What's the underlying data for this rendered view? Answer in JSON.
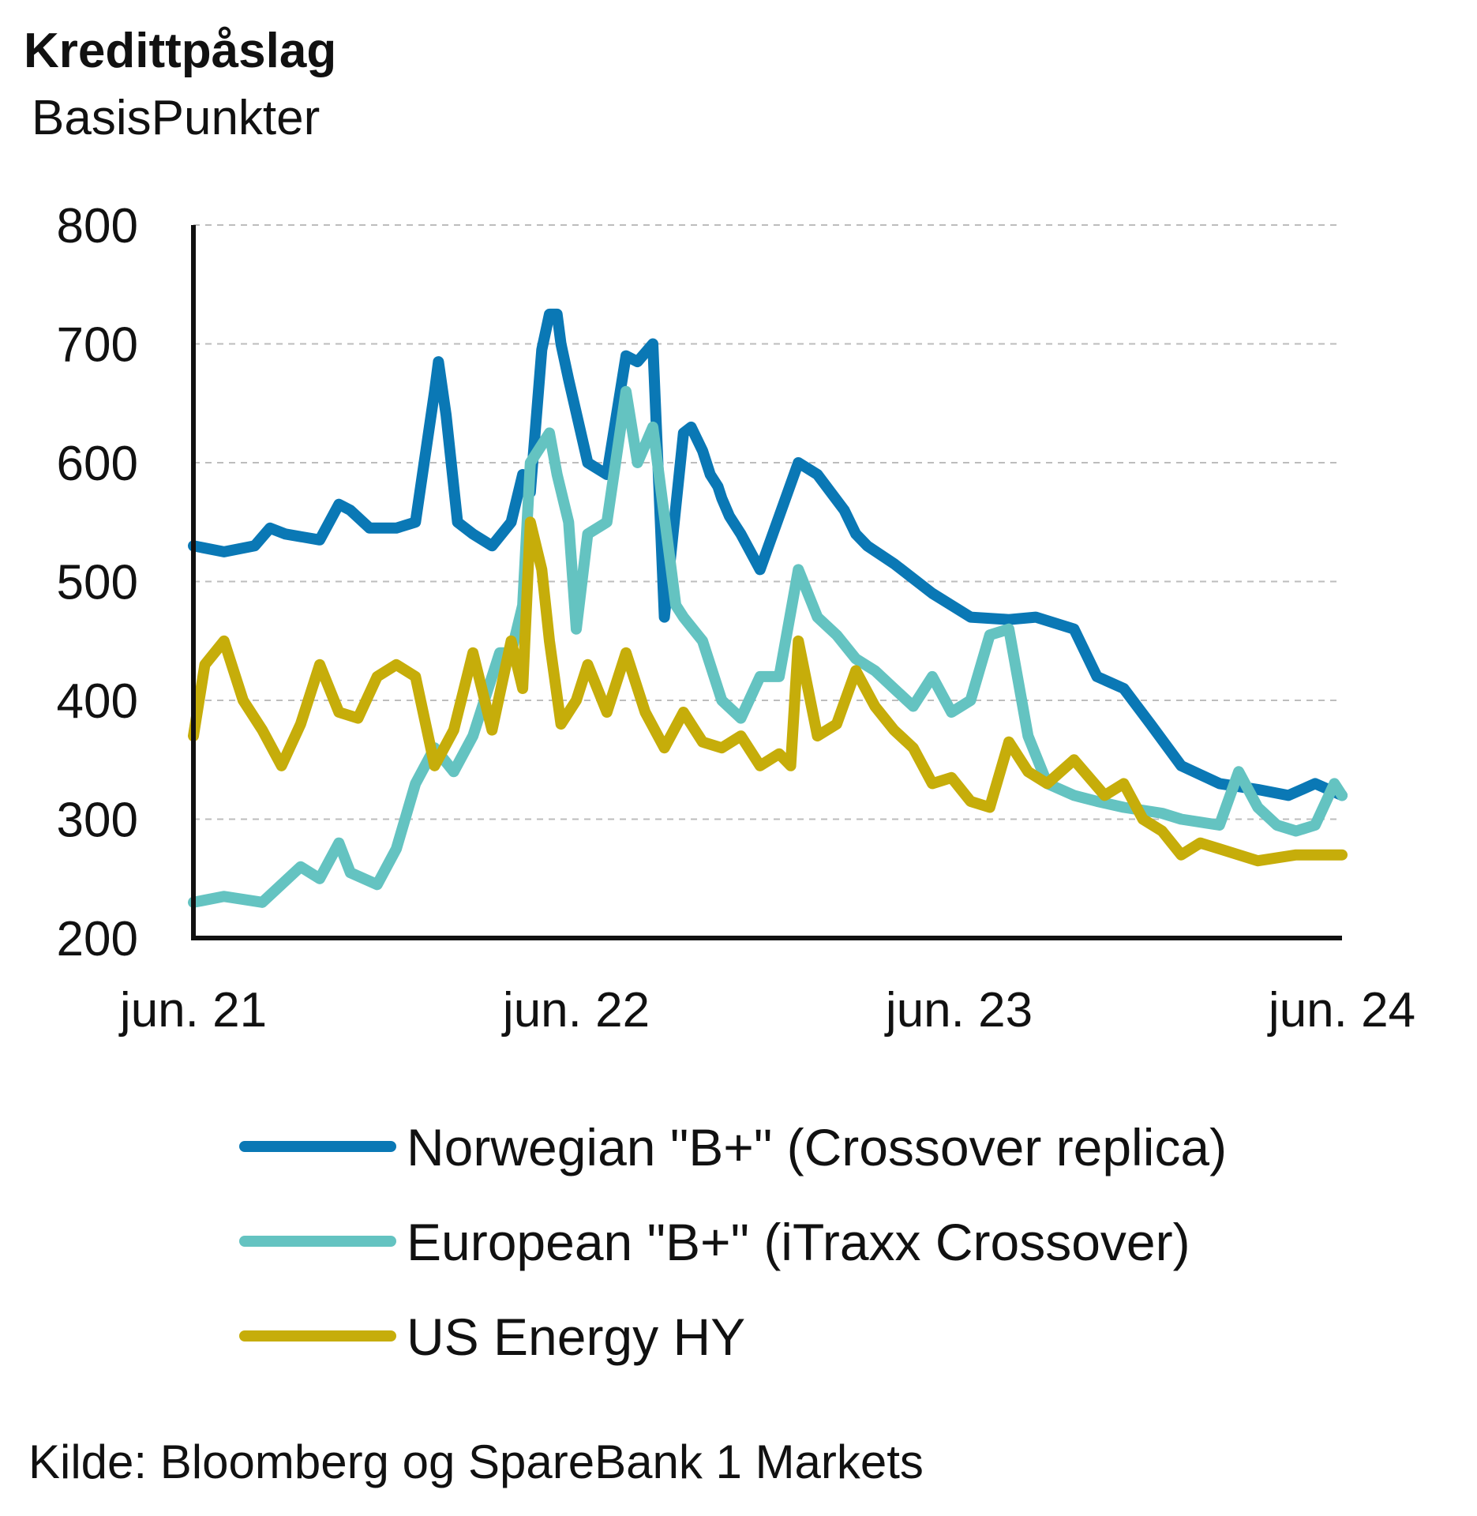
{
  "chart_data": {
    "type": "line",
    "title": "Kredittpåslag",
    "subtitle": "BasisPunkter",
    "ylim": [
      200,
      800
    ],
    "yticks": [
      200,
      300,
      400,
      500,
      600,
      700,
      800
    ],
    "x_tick_labels": [
      "jun. 21",
      "jun. 22",
      "jun. 23",
      "jun. 24"
    ],
    "x_ticks": [
      2021.42,
      2022.42,
      2023.42,
      2024.42
    ],
    "xlim": [
      2021.42,
      2024.42
    ],
    "grid": "horizontal-dashed",
    "legend_position": "bottom",
    "source": "Kilde: Bloomberg og SpareBank 1 Markets",
    "series": [
      {
        "name": "Norwegian \"B+\" (Crossover replica)",
        "color": "#0a78b5",
        "x": [
          2021.42,
          2021.5,
          2021.58,
          2021.62,
          2021.66,
          2021.75,
          2021.8,
          2021.83,
          2021.88,
          2021.95,
          2022.0,
          2022.05,
          2022.06,
          2022.08,
          2022.11,
          2022.15,
          2022.2,
          2022.25,
          2022.28,
          2022.3,
          2022.33,
          2022.35,
          2022.37,
          2022.38,
          2022.4,
          2022.45,
          2022.5,
          2022.55,
          2022.58,
          2022.62,
          2022.65,
          2022.7,
          2022.72,
          2022.75,
          2022.77,
          2022.79,
          2022.8,
          2022.82,
          2022.83,
          2022.85,
          2022.9,
          2023.0,
          2023.05,
          2023.12,
          2023.15,
          2023.18,
          2023.25,
          2023.35,
          2023.45,
          2023.55,
          2023.62,
          2023.72,
          2023.78,
          2023.85,
          2023.92,
          2024.0,
          2024.1,
          2024.2,
          2024.28,
          2024.35,
          2024.42
        ],
        "values": [
          530,
          525,
          530,
          545,
          540,
          535,
          565,
          560,
          545,
          545,
          550,
          660,
          685,
          640,
          550,
          540,
          530,
          550,
          590,
          575,
          695,
          725,
          725,
          700,
          670,
          600,
          590,
          690,
          685,
          700,
          470,
          625,
          630,
          610,
          590,
          580,
          570,
          555,
          550,
          540,
          510,
          600,
          590,
          560,
          540,
          530,
          515,
          490,
          470,
          468,
          470,
          460,
          420,
          410,
          380,
          345,
          330,
          325,
          320,
          330,
          320
        ]
      },
      {
        "name": "European \"B+\" (iTraxx Crossover)",
        "color": "#64c3c1",
        "x": [
          2021.42,
          2021.5,
          2021.6,
          2021.7,
          2021.75,
          2021.8,
          2021.83,
          2021.9,
          2021.95,
          2022.0,
          2022.05,
          2022.1,
          2022.15,
          2022.22,
          2022.25,
          2022.28,
          2022.3,
          2022.35,
          2022.37,
          2022.4,
          2022.42,
          2022.45,
          2022.5,
          2022.55,
          2022.58,
          2022.62,
          2022.65,
          2022.68,
          2022.7,
          2022.75,
          2022.8,
          2022.85,
          2022.9,
          2022.95,
          2023.0,
          2023.05,
          2023.1,
          2023.15,
          2023.2,
          2023.25,
          2023.3,
          2023.35,
          2023.4,
          2023.45,
          2023.5,
          2023.55,
          2023.6,
          2023.65,
          2023.72,
          2023.78,
          2023.85,
          2023.95,
          2024.0,
          2024.1,
          2024.15,
          2024.2,
          2024.25,
          2024.3,
          2024.35,
          2024.4,
          2024.42
        ],
        "values": [
          230,
          235,
          230,
          260,
          250,
          280,
          255,
          245,
          275,
          330,
          360,
          340,
          370,
          440,
          440,
          480,
          600,
          625,
          590,
          550,
          460,
          540,
          550,
          660,
          600,
          630,
          555,
          480,
          470,
          450,
          400,
          385,
          420,
          420,
          510,
          470,
          455,
          435,
          425,
          410,
          395,
          420,
          390,
          400,
          455,
          460,
          370,
          330,
          320,
          315,
          310,
          305,
          300,
          295,
          340,
          310,
          295,
          290,
          295,
          330,
          320
        ]
      },
      {
        "name": "US Energy HY",
        "color": "#c6ad0a",
        "x": [
          2021.42,
          2021.45,
          2021.5,
          2021.55,
          2021.6,
          2021.65,
          2021.7,
          2021.75,
          2021.8,
          2021.85,
          2021.9,
          2021.95,
          2022.0,
          2022.05,
          2022.1,
          2022.15,
          2022.2,
          2022.25,
          2022.28,
          2022.3,
          2022.33,
          2022.35,
          2022.38,
          2022.42,
          2022.45,
          2022.5,
          2022.55,
          2022.6,
          2022.65,
          2022.7,
          2022.75,
          2022.8,
          2022.85,
          2022.9,
          2022.95,
          2022.98,
          2023.0,
          2023.05,
          2023.1,
          2023.15,
          2023.2,
          2023.25,
          2023.3,
          2023.35,
          2023.4,
          2023.45,
          2023.5,
          2023.55,
          2023.6,
          2023.65,
          2023.72,
          2023.8,
          2023.85,
          2023.9,
          2023.95,
          2024.0,
          2024.05,
          2024.1,
          2024.2,
          2024.3,
          2024.42
        ],
        "values": [
          370,
          430,
          450,
          400,
          375,
          345,
          380,
          430,
          390,
          385,
          420,
          430,
          420,
          345,
          375,
          440,
          375,
          450,
          410,
          550,
          510,
          450,
          380,
          400,
          430,
          390,
          440,
          390,
          360,
          390,
          365,
          360,
          370,
          345,
          355,
          345,
          450,
          370,
          380,
          425,
          395,
          375,
          360,
          330,
          335,
          315,
          310,
          365,
          340,
          330,
          350,
          320,
          330,
          300,
          290,
          270,
          280,
          275,
          265,
          270,
          270
        ]
      }
    ]
  }
}
